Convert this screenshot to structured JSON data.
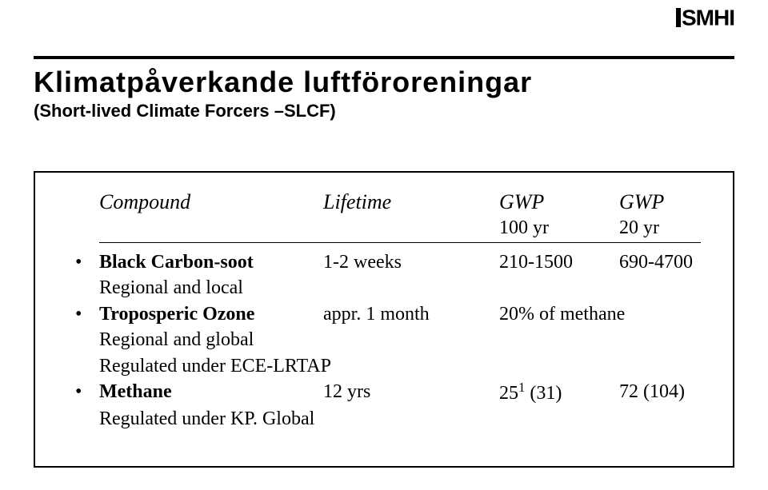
{
  "logo": {
    "text": "SMHI"
  },
  "title": "Klimatpåverkande luftföroreningar",
  "subtitle": "(Short-lived Climate Forcers –SLCF)",
  "headers": {
    "compound": "Compound",
    "lifetime": "Lifetime",
    "gwp": "GWP",
    "gwp2": "GWP",
    "sub100": "100 yr",
    "sub20": "20 yr"
  },
  "rows": [
    {
      "name": "Black Carbon-soot",
      "lifetime": "1-2 weeks",
      "gwp100": "210-1500",
      "gwp20": "690-4700",
      "note": "Regional and local"
    },
    {
      "name": "Troposperic Ozone",
      "lifetime": "appr. 1 month",
      "gwp_combined": "20% of methane",
      "note": "Regional and global",
      "note2": "Regulated under ECE-LRTAP"
    },
    {
      "name": "Methane",
      "lifetime": "12 yrs",
      "gwp100_pre": "25",
      "gwp100_sup": "1",
      "gwp100_post": " (31)",
      "gwp20": "72 (104)",
      "note": "Regulated under KP. Global"
    }
  ]
}
